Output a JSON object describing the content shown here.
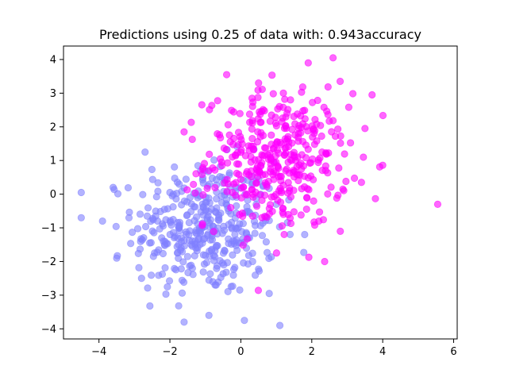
{
  "chart_data": {
    "type": "scatter",
    "title": "Predictions using 0.25 of data with: 0.943accuracy",
    "xlabel": "",
    "ylabel": "",
    "xlim": [
      -5.0,
      6.1
    ],
    "ylim": [
      -4.3,
      4.4
    ],
    "xticks": [
      -4,
      -2,
      0,
      2,
      4,
      6
    ],
    "yticks": [
      -4,
      -3,
      -2,
      -1,
      0,
      1,
      2,
      3,
      4
    ],
    "xtick_labels": [
      "−4",
      "−2",
      "0",
      "2",
      "4",
      "6"
    ],
    "ytick_labels": [
      "−4",
      "−3",
      "−2",
      "−1",
      "0",
      "1",
      "2",
      "3",
      "4"
    ],
    "grid": false,
    "legend": "none",
    "point_alpha": 0.6,
    "series": [
      {
        "color": "#8080ff",
        "center": [
          -1.0,
          -1.0
        ],
        "points_sample": [
          [
            -4.5,
            0.05
          ],
          [
            -4.5,
            -0.7
          ],
          [
            -3.6,
            0.2
          ],
          [
            -3.9,
            -0.8
          ],
          [
            -2.7,
            1.25
          ],
          [
            -2.0,
            0.05
          ],
          [
            -1.4,
            -1.5
          ],
          [
            -0.9,
            -3.6
          ],
          [
            1.1,
            -3.9
          ],
          [
            0.1,
            -3.75
          ],
          [
            1.0,
            -0.3
          ],
          [
            1.8,
            -1.2
          ],
          [
            -1.6,
            -3.8
          ],
          [
            -3.5,
            -1.9
          ],
          [
            -2.8,
            -2.5
          ],
          [
            0.8,
            -2.95
          ]
        ],
        "n_points": 380
      },
      {
        "color": "#ff00ff",
        "center": [
          1.0,
          1.0
        ],
        "points_sample": [
          [
            2.6,
            4.05
          ],
          [
            1.9,
            3.9
          ],
          [
            -0.4,
            3.55
          ],
          [
            3.7,
            2.95
          ],
          [
            5.55,
            -0.3
          ],
          [
            -1.6,
            1.85
          ],
          [
            3.4,
            0.35
          ],
          [
            1.4,
            2.8
          ],
          [
            -0.2,
            0.3
          ],
          [
            2.2,
            -0.8
          ],
          [
            0.5,
            3.3
          ],
          [
            2.8,
            3.35
          ],
          [
            -0.9,
            0.7
          ],
          [
            3.5,
            1.95
          ],
          [
            1.2,
            -0.6
          ]
        ],
        "n_points": 380
      }
    ]
  }
}
